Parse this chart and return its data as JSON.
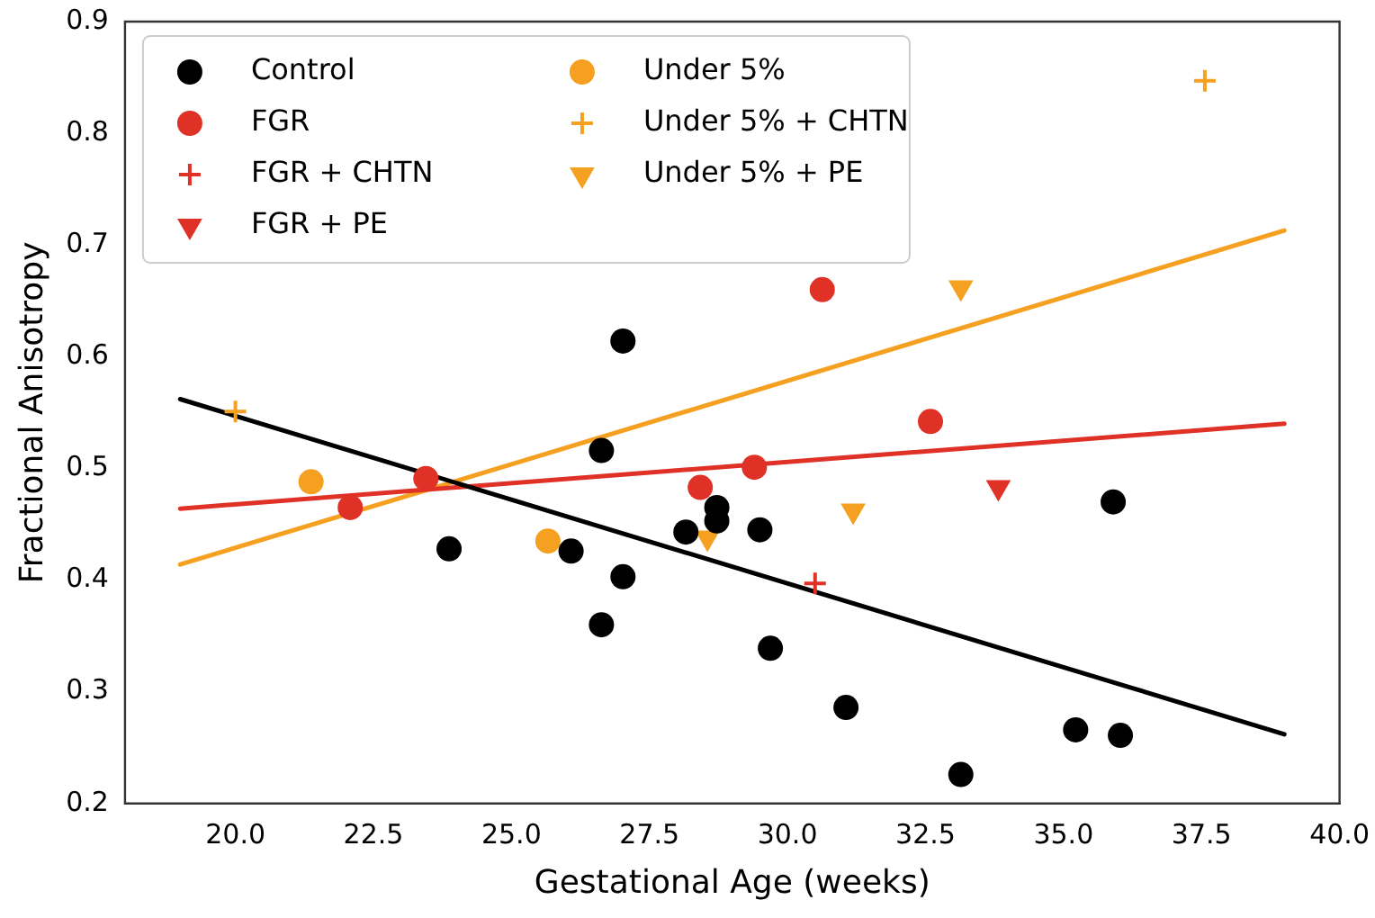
{
  "chart_data": {
    "type": "scatter",
    "xlabel": "Gestational Age (weeks)",
    "ylabel": "Fractional Anisotropy",
    "xlim": [
      18,
      40
    ],
    "ylim": [
      0.2,
      0.9
    ],
    "xticks": [
      {
        "value": 20,
        "label": "20.0"
      },
      {
        "value": 22.5,
        "label": "22.5"
      },
      {
        "value": 25,
        "label": "25.0"
      },
      {
        "value": 27.5,
        "label": "27.5"
      },
      {
        "value": 30,
        "label": "30.0"
      },
      {
        "value": 32.5,
        "label": "32.5"
      },
      {
        "value": 35,
        "label": "35.0"
      },
      {
        "value": 37.5,
        "label": "37.5"
      },
      {
        "value": 40,
        "label": "40.0"
      }
    ],
    "yticks": [
      0.2,
      0.3,
      0.4,
      0.5,
      0.6,
      0.7,
      0.8,
      0.9
    ],
    "grid": false,
    "legend": "top left",
    "series": [
      {
        "name": "Control",
        "color": "#000000",
        "marker": "circle",
        "x": [
          23.87,
          26.08,
          26.63,
          26.63,
          27.02,
          27.02,
          28.16,
          28.72,
          28.72,
          29.5,
          29.69,
          31.06,
          33.14,
          35.22,
          35.9,
          36.03
        ],
        "values": [
          0.428,
          0.426,
          0.516,
          0.36,
          0.614,
          0.403,
          0.443,
          0.465,
          0.453,
          0.445,
          0.339,
          0.286,
          0.226,
          0.266,
          0.47,
          0.261
        ]
      },
      {
        "name": "FGR",
        "color": "#e03127",
        "marker": "circle",
        "x": [
          22.08,
          23.45,
          28.42,
          29.4,
          30.63,
          32.59
        ],
        "values": [
          0.465,
          0.491,
          0.483,
          0.501,
          0.66,
          0.542
        ]
      },
      {
        "name": "FGR + CHTN",
        "color": "#e03127",
        "marker": "cross",
        "x": [
          30.5
        ],
        "values": [
          0.397
        ]
      },
      {
        "name": "FGR + PE",
        "color": "#e03127",
        "marker": "triangle",
        "x": [
          33.82
        ],
        "values": [
          0.483
        ]
      },
      {
        "name": "Under 5%",
        "color": "#f5a020",
        "marker": "circle",
        "x": [
          21.37,
          25.66
        ],
        "values": [
          0.488,
          0.435
        ]
      },
      {
        "name": "Under 5% + CHTN",
        "color": "#f5a020",
        "marker": "cross",
        "x": [
          20.0,
          37.56
        ],
        "values": [
          0.551,
          0.847
        ]
      },
      {
        "name": "Under 5% + PE",
        "color": "#f5a020",
        "marker": "triangle",
        "x": [
          28.55,
          31.19,
          33.14
        ],
        "values": [
          0.438,
          0.462,
          0.662
        ]
      },
      {
        "type": "line",
        "color": "#000000",
        "marker": "none",
        "x": [
          19,
          39
        ],
        "values": [
          0.562,
          0.262
        ]
      },
      {
        "type": "line",
        "color": "#e03127",
        "marker": "none",
        "x": [
          19,
          39
        ],
        "values": [
          0.464,
          0.54
        ]
      },
      {
        "type": "line",
        "color": "#f5a020",
        "marker": "none",
        "x": [
          19,
          39
        ],
        "values": [
          0.414,
          0.713
        ]
      }
    ]
  }
}
